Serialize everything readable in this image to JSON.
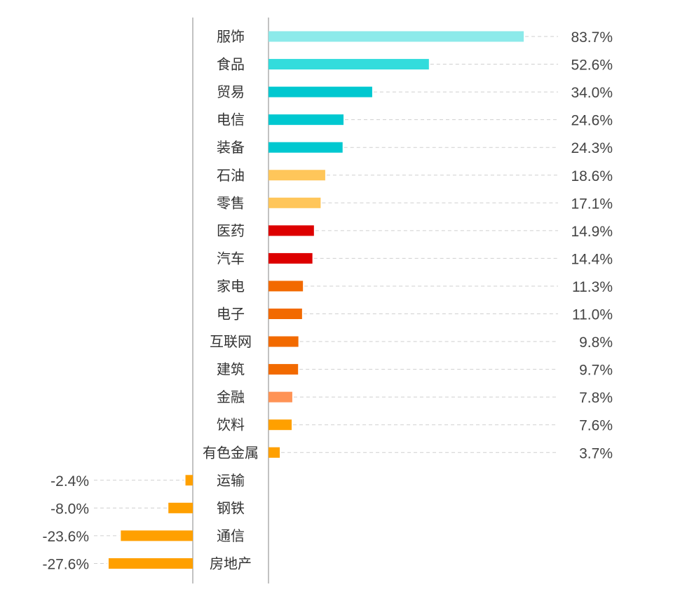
{
  "chart_data": {
    "type": "bar",
    "orientation": "horizontal",
    "title": "",
    "xlabel": "",
    "ylabel": "",
    "unit": "%",
    "grid": false,
    "categories": [
      "服饰",
      "食品",
      "贸易",
      "电信",
      "装备",
      "石油",
      "零售",
      "医药",
      "汽车",
      "家电",
      "电子",
      "互联网",
      "建筑",
      "金融",
      "饮料",
      "有色金属",
      "运输",
      "钢铁",
      "通信",
      "房地产"
    ],
    "values": [
      83.7,
      52.6,
      34.0,
      24.6,
      24.3,
      18.6,
      17.1,
      14.9,
      14.4,
      11.3,
      11.0,
      9.8,
      9.7,
      7.8,
      7.6,
      3.7,
      -2.4,
      -8.0,
      -23.6,
      -27.6
    ],
    "value_labels": [
      "83.7%",
      "52.6%",
      "34.0%",
      "24.6%",
      "24.3%",
      "18.6%",
      "17.1%",
      "14.9%",
      "14.4%",
      "11.3%",
      "11.0%",
      "9.8%",
      "9.7%",
      "7.8%",
      "7.6%",
      "3.7%",
      "-2.4%",
      "-8.0%",
      "-23.6%",
      "-27.6%"
    ],
    "colors": [
      "#8CEAEA",
      "#33DCDC",
      "#00C8D0",
      "#00C8D0",
      "#00C8D0",
      "#FFC65A",
      "#FFC65A",
      "#DD0000",
      "#DD0000",
      "#F26A00",
      "#F26A00",
      "#F26A00",
      "#F26A00",
      "#FF9355",
      "#FFA000",
      "#FFA000",
      "#FFA000",
      "#FFA000",
      "#FFA000",
      "#FFA000"
    ],
    "xlim": [
      -27.6,
      83.7
    ]
  }
}
